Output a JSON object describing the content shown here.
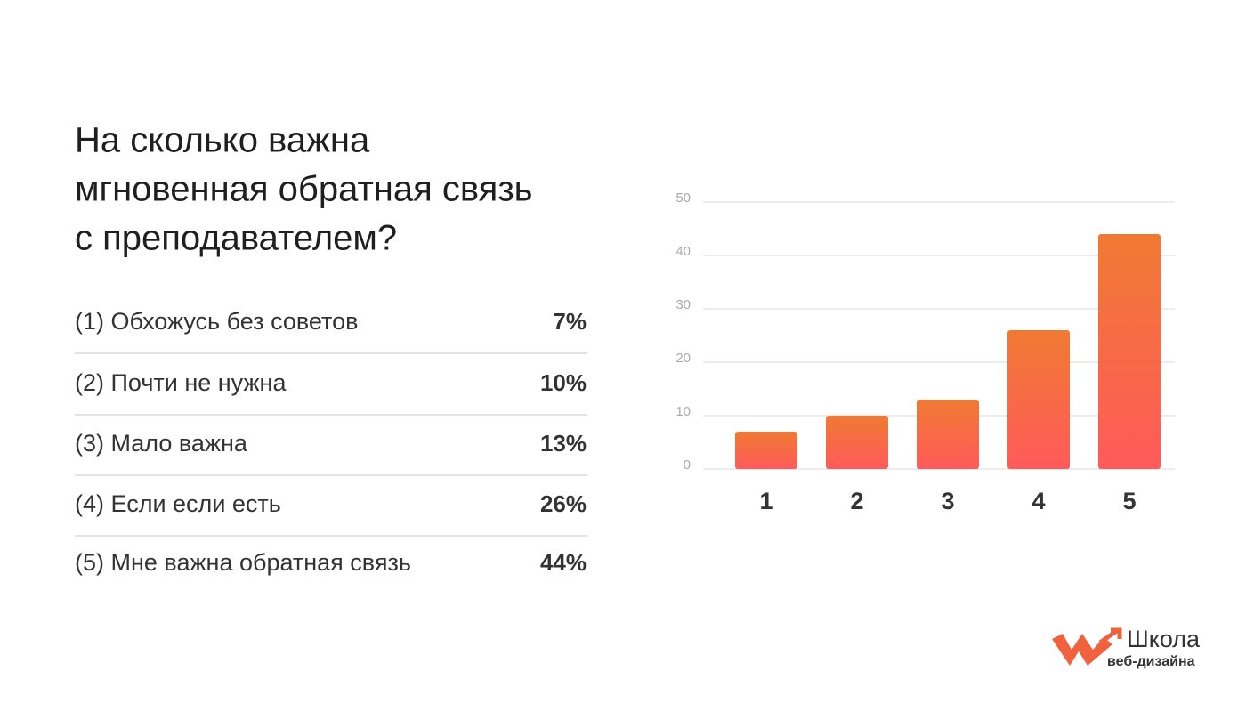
{
  "header": {
    "title_lines": [
      "На сколько важна",
      "мгновенная обратная связь",
      "с преподавателем?"
    ]
  },
  "list": {
    "rows": [
      {
        "label": "(1) Обхожусь без советов",
        "value": "7%"
      },
      {
        "label": "(2) Почти не нужна",
        "value": "10%"
      },
      {
        "label": "(3) Мало важна",
        "value": "13%"
      },
      {
        "label": "(4) Если если есть",
        "value": "26%"
      },
      {
        "label": "(5) Мне важна обратная связь",
        "value": "44%"
      }
    ]
  },
  "chart_data": {
    "type": "bar",
    "categories": [
      "1",
      "2",
      "3",
      "4",
      "5"
    ],
    "values": [
      7,
      10,
      13,
      26,
      44
    ],
    "color": [
      "#f07a33",
      "#ff5a5a"
    ],
    "ylim": [
      0,
      50
    ],
    "yticks": [
      0,
      10,
      20,
      30,
      40,
      50
    ],
    "grid": true
  },
  "logo": {
    "name": "Школа",
    "subtitle": "веб-дизайна"
  }
}
